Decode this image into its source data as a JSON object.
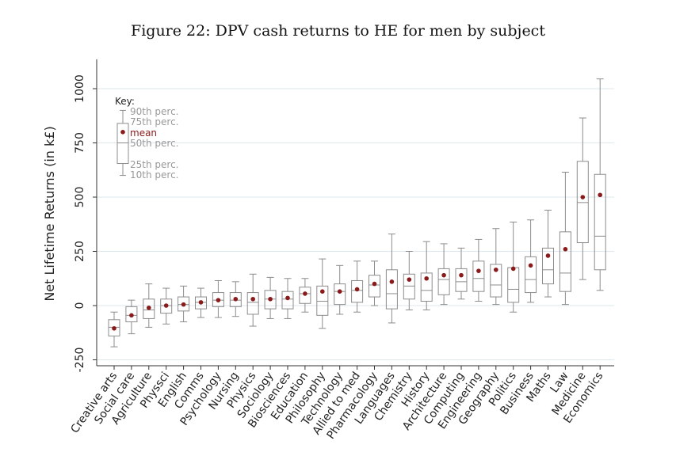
{
  "figure": {
    "title": "Figure 22: DPV cash returns to HE for men by subject"
  },
  "chart_data": {
    "type": "box",
    "title": "Figure 22: DPV cash returns to HE for men by subject",
    "ylabel": "Net Lifetime Returns (in k£)",
    "xlabel": "",
    "ylim": [
      -260,
      1070
    ],
    "yticks": [
      -250,
      0,
      250,
      500,
      750,
      1000
    ],
    "ytick_labels": [
      "-250",
      "0",
      "250",
      "500",
      "750",
      "1000"
    ],
    "grid": "horizontal",
    "colors": {
      "box": "#8c8c8c",
      "mean": "#8b1a1a",
      "grid": "#dde8ee",
      "key_text": "#999999"
    },
    "key": {
      "title": "Key:",
      "labels": [
        "90th perc.",
        "75th perc.",
        "mean",
        "50th perc.",
        "25th perc.",
        "10th perc."
      ],
      "values": {
        "p10": 600,
        "p25": 655,
        "median": 750,
        "p75": 840,
        "p90": 900,
        "mean": 800
      }
    },
    "categories": [
      "Creative arts",
      "Social care",
      "Agriculture",
      "Physsci",
      "English",
      "Comms",
      "Psychology",
      "Nursing",
      "Physics",
      "Sociology",
      "Biosciences",
      "Education",
      "Philosophy",
      "Technology",
      "Allied to med",
      "Pharmacology",
      "Languages",
      "Chemistry",
      "History",
      "Architecture",
      "Computing",
      "Engineering",
      "Geography",
      "Politics",
      "Business",
      "Maths",
      "Law",
      "Medicine",
      "Economics"
    ],
    "boxes": [
      {
        "p10": -190,
        "p25": -140,
        "median": -100,
        "p75": -65,
        "p90": -30,
        "mean": -105
      },
      {
        "p10": -130,
        "p25": -75,
        "median": -45,
        "p75": -5,
        "p90": 25,
        "mean": -45
      },
      {
        "p10": -100,
        "p25": -60,
        "median": -20,
        "p75": 30,
        "p90": 100,
        "mean": -10
      },
      {
        "p10": -85,
        "p25": -35,
        "median": 0,
        "p75": 30,
        "p90": 80,
        "mean": 0
      },
      {
        "p10": -75,
        "p25": -25,
        "median": 5,
        "p75": 40,
        "p90": 90,
        "mean": 5
      },
      {
        "p10": -55,
        "p25": -15,
        "median": 15,
        "p75": 40,
        "p90": 80,
        "mean": 15
      },
      {
        "p10": -55,
        "p25": -5,
        "median": 25,
        "p75": 60,
        "p90": 115,
        "mean": 25
      },
      {
        "p10": -50,
        "p25": -5,
        "median": 25,
        "p75": 60,
        "p90": 110,
        "mean": 30
      },
      {
        "p10": -95,
        "p25": -40,
        "median": 15,
        "p75": 60,
        "p90": 145,
        "mean": 30
      },
      {
        "p10": -60,
        "p25": -15,
        "median": 30,
        "p75": 70,
        "p90": 130,
        "mean": 30
      },
      {
        "p10": -60,
        "p25": -15,
        "median": 30,
        "p75": 65,
        "p90": 125,
        "mean": 35
      },
      {
        "p10": -30,
        "p25": 10,
        "median": 55,
        "p75": 85,
        "p90": 125,
        "mean": 55
      },
      {
        "p10": -105,
        "p25": -45,
        "median": 20,
        "p75": 90,
        "p90": 215,
        "mean": 65
      },
      {
        "p10": -40,
        "p25": 5,
        "median": 65,
        "p75": 100,
        "p90": 185,
        "mean": 65
      },
      {
        "p10": -30,
        "p25": 15,
        "median": 70,
        "p75": 115,
        "p90": 205,
        "mean": 75
      },
      {
        "p10": 0,
        "p25": 40,
        "median": 95,
        "p75": 140,
        "p90": 205,
        "mean": 100
      },
      {
        "p10": -80,
        "p25": -15,
        "median": 55,
        "p75": 165,
        "p90": 330,
        "mean": 110
      },
      {
        "p10": -20,
        "p25": 30,
        "median": 90,
        "p75": 145,
        "p90": 250,
        "mean": 120
      },
      {
        "p10": -20,
        "p25": 20,
        "median": 70,
        "p75": 150,
        "p90": 295,
        "mean": 125
      },
      {
        "p10": 5,
        "p25": 50,
        "median": 120,
        "p75": 170,
        "p90": 285,
        "mean": 140
      },
      {
        "p10": 30,
        "p25": 65,
        "median": 110,
        "p75": 170,
        "p90": 265,
        "mean": 140
      },
      {
        "p10": 20,
        "p25": 65,
        "median": 125,
        "p75": 205,
        "p90": 305,
        "mean": 160
      },
      {
        "p10": 5,
        "p25": 40,
        "median": 95,
        "p75": 190,
        "p90": 355,
        "mean": 165
      },
      {
        "p10": -30,
        "p25": 15,
        "median": 75,
        "p75": 175,
        "p90": 385,
        "mean": 170
      },
      {
        "p10": 15,
        "p25": 60,
        "median": 120,
        "p75": 225,
        "p90": 395,
        "mean": 185
      },
      {
        "p10": 40,
        "p25": 100,
        "median": 165,
        "p75": 265,
        "p90": 440,
        "mean": 230
      },
      {
        "p10": 5,
        "p25": 65,
        "median": 150,
        "p75": 340,
        "p90": 615,
        "mean": 260
      },
      {
        "p10": 120,
        "p25": 290,
        "median": 475,
        "p75": 665,
        "p90": 865,
        "mean": 500
      },
      {
        "p10": 70,
        "p25": 165,
        "median": 320,
        "p75": 605,
        "p90": 1045,
        "mean": 510
      }
    ]
  }
}
